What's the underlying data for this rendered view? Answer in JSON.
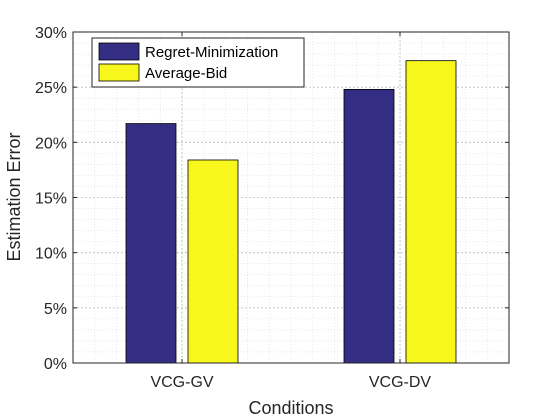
{
  "chart_data": {
    "type": "bar",
    "title": "",
    "xlabel": "Conditions",
    "ylabel": "Estimation Error",
    "categories": [
      "VCG-GV",
      "VCG-DV"
    ],
    "series": [
      {
        "name": "Regret-Minimization",
        "values": [
          21.7,
          24.8
        ],
        "color": "#332d83"
      },
      {
        "name": "Average-Bid",
        "values": [
          18.4,
          27.4
        ],
        "color": "#f7f71c"
      }
    ],
    "ylim": [
      0,
      30
    ],
    "yticks": [
      0,
      5,
      10,
      15,
      20,
      25,
      30
    ],
    "ytick_labels": [
      "0%",
      "5%",
      "10%",
      "15%",
      "20%",
      "25%",
      "30%"
    ],
    "grid": true,
    "minor_grid": true,
    "legend_position": "top-left"
  }
}
